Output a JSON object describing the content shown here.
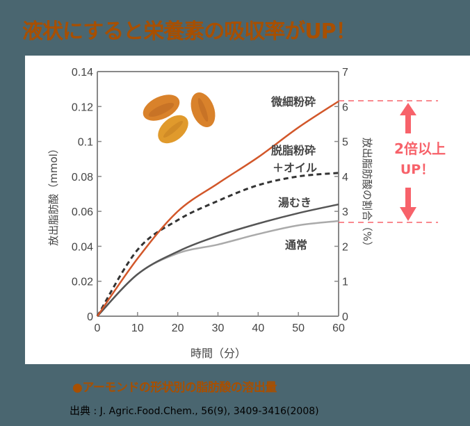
{
  "header": {
    "title": "液状にすると栄養素の吸収率がUP！"
  },
  "caption": {
    "bullet": "●",
    "text": "アーモンドの形状別の脂肪酸の溶出量"
  },
  "source": {
    "label": "出典",
    "separator": " : ",
    "citation": "J. Agric.Food.Chem., 56(9), 3409-3416(2008)"
  },
  "annotation": {
    "line1": "2倍以上",
    "line2": "UP！",
    "color": "#f7626a"
  },
  "icons": {
    "illustration": "almond-illustration"
  },
  "chart_data": {
    "type": "line",
    "title": "",
    "xlabel": "時間（分）",
    "ylabel": "放出脂肪酸（mmol）",
    "y2label": "放出脂肪酸の割合（%）",
    "xlim": [
      0,
      60
    ],
    "ylim": [
      0,
      0.14
    ],
    "y2lim": [
      0,
      7
    ],
    "x_ticks": [
      "0",
      "10",
      "20",
      "30",
      "40",
      "50",
      "60"
    ],
    "y_ticks": [
      "0",
      "0.02",
      "0.04",
      "0.06",
      "0.08",
      "0.1",
      "0.12",
      "0.14"
    ],
    "y2_ticks": [
      "0",
      "1",
      "2",
      "3",
      "4",
      "5",
      "6",
      "7"
    ],
    "grid": false,
    "legend_position": "inline labels",
    "x": [
      0,
      10,
      20,
      30,
      40,
      50,
      60
    ],
    "series": [
      {
        "name": "微細粉砕",
        "style": "solid",
        "color": "#d2572a",
        "values": [
          0,
          0.033,
          0.06,
          0.076,
          0.091,
          0.108,
          0.123
        ]
      },
      {
        "name": "脱脂粉砕＋オイル",
        "style": "dashed",
        "color": "#333333",
        "values": [
          0,
          0.038,
          0.055,
          0.066,
          0.075,
          0.08,
          0.082
        ]
      },
      {
        "name": "湯むき",
        "style": "solid",
        "color": "#555555",
        "values": [
          0,
          0.024,
          0.037,
          0.046,
          0.053,
          0.059,
          0.064
        ]
      },
      {
        "name": "通常",
        "style": "solid",
        "color": "#aaaaaa",
        "values": [
          0,
          0.024,
          0.036,
          0.041,
          0.047,
          0.052,
          0.0545
        ]
      }
    ],
    "annotations": [
      "2倍以上 UP！"
    ]
  }
}
